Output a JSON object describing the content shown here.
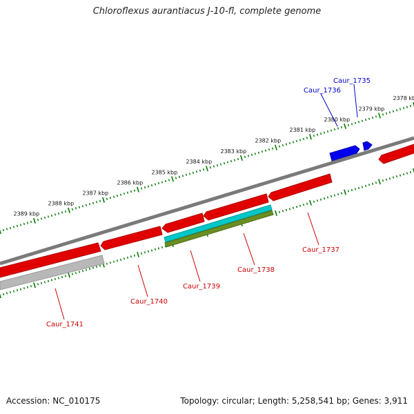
{
  "title": "Chloroflexus aurantiacus J-10-fl, complete genome",
  "footer": {
    "accession": "Accession: NC_010175",
    "summary": "Topology: circular; Length: 5,258,541 bp; Genes: 3,911"
  },
  "colors": {
    "forward_gene": "#ff0000",
    "reverse_gene": "#ff0000",
    "highlight_gene": "#0000ff",
    "forward_label": "#cc0000",
    "highlight_label": "#0000cc",
    "backbone": "#7a7a7a",
    "tick": "#007700",
    "rna_cyan": "#00c8c8",
    "rna_olive": "#6b8e23",
    "pseudo": "#b0b0b0"
  },
  "scale_ticks": [
    {
      "kbp": 2378,
      "label": "2378 kbp"
    },
    {
      "kbp": 2379,
      "label": "2379 kbp"
    },
    {
      "kbp": 2380,
      "label": "2380 kbp"
    },
    {
      "kbp": 2381,
      "label": "2381 kbp"
    },
    {
      "kbp": 2382,
      "label": "2382 kbp"
    },
    {
      "kbp": 2383,
      "label": "2383 kbp"
    },
    {
      "kbp": 2384,
      "label": "2384 kbp"
    },
    {
      "kbp": 2385,
      "label": "2385 kbp"
    },
    {
      "kbp": 2386,
      "label": "2386 kbp"
    },
    {
      "kbp": 2387,
      "label": "2387 kbp"
    },
    {
      "kbp": 2388,
      "label": "2388 kbp"
    },
    {
      "kbp": 2389,
      "label": "2389 kbp"
    }
  ],
  "genes": [
    {
      "label": "Caur_1735",
      "strand": "forward",
      "color": "blue"
    },
    {
      "label": "Caur_1736",
      "strand": "forward",
      "color": "blue"
    },
    {
      "label": "Caur_1737",
      "strand": "reverse",
      "color": "red"
    },
    {
      "label": "Caur_1738",
      "strand": "reverse",
      "color": "cyan/olive"
    },
    {
      "label": "Caur_1739",
      "strand": "reverse",
      "color": "red"
    },
    {
      "label": "Caur_1740",
      "strand": "reverse",
      "color": "red"
    },
    {
      "label": "Caur_1741",
      "strand": "reverse",
      "color": "grey"
    }
  ]
}
